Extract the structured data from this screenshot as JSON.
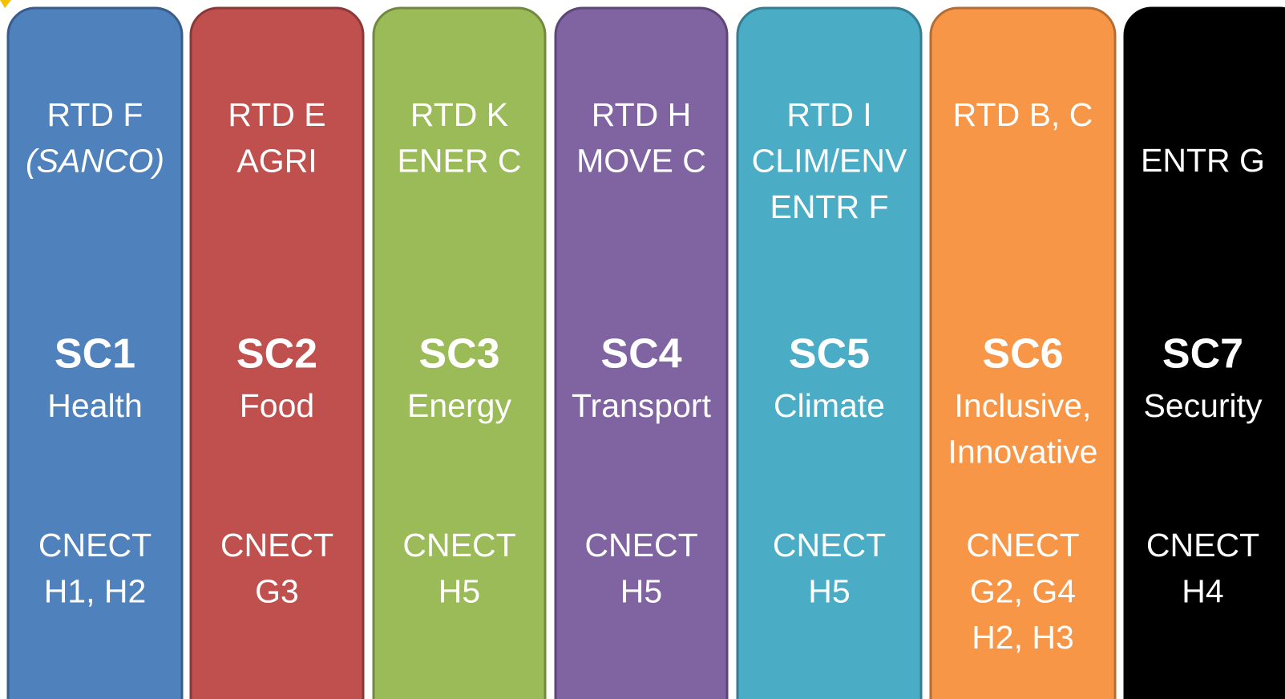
{
  "columns": [
    {
      "color": "#4f81bd",
      "border": "#385d8a",
      "top": [
        "RTD F",
        "(SANCO)"
      ],
      "italic_top_lines": [
        1
      ],
      "code": "SC1",
      "name": [
        "Health"
      ],
      "bottom": [
        "CNECT",
        "H1, H2"
      ]
    },
    {
      "color": "#c0504d",
      "border": "#8c3836",
      "top": [
        "RTD E",
        "AGRI"
      ],
      "code": "SC2",
      "name": [
        "Food"
      ],
      "bottom": [
        "CNECT",
        "G3"
      ]
    },
    {
      "color": "#9bbb59",
      "border": "#71893f",
      "top": [
        "RTD K",
        "ENER C"
      ],
      "code": "SC3",
      "name": [
        "Energy"
      ],
      "bottom": [
        "CNECT",
        "H5"
      ]
    },
    {
      "color": "#8064a2",
      "border": "#5c4776",
      "top": [
        "RTD H",
        "MOVE C"
      ],
      "code": "SC4",
      "name": [
        "Transport"
      ],
      "bottom": [
        "CNECT",
        "H5"
      ]
    },
    {
      "color": "#4bacc6",
      "border": "#357d91",
      "top": [
        "RTD I",
        "CLIM/ENV",
        "ENTR F"
      ],
      "code": "SC5",
      "name": [
        "Climate"
      ],
      "bottom": [
        "CNECT",
        "H5"
      ]
    },
    {
      "color": "#f79646",
      "border": "#b66d31",
      "top": [
        "RTD B, C"
      ],
      "code": "SC6",
      "name": [
        "Inclusive,",
        "Innovative"
      ],
      "bottom": [
        "CNECT",
        "G2, G4",
        "H2, H3"
      ]
    },
    {
      "color": "#000000",
      "border": "#000000",
      "top": [
        "ENTR G"
      ],
      "code": "SC7",
      "name": [
        "Security"
      ],
      "bottom": [
        "CNECT",
        "H4"
      ]
    }
  ]
}
